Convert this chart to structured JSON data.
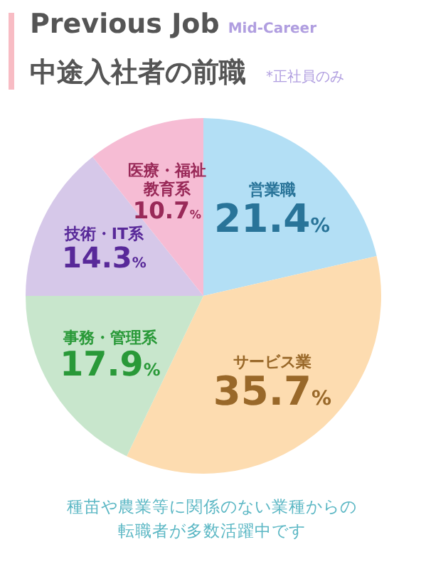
{
  "chart_data": {
    "type": "pie",
    "title": "Previous Job",
    "subtitle": "中途入社者の前職",
    "annotations": [
      "Mid-Career",
      "*正社員のみ",
      "種苗や農業等に関係のない業種からの転職者が多数活躍中です"
    ],
    "categories": [
      "営業職",
      "サービス業",
      "事務・管理系",
      "技術・IT系",
      "医療・福祉教育系"
    ],
    "values": [
      21.4,
      35.7,
      17.9,
      14.3,
      10.7
    ],
    "colors": [
      "#b3dff5",
      "#fddcb0",
      "#c8e6cc",
      "#d6c8e9",
      "#f6bcd4"
    ],
    "value_labels": [
      "21.4%",
      "35.7%",
      "17.9%",
      "14.3%",
      "10.7%"
    ]
  }
}
